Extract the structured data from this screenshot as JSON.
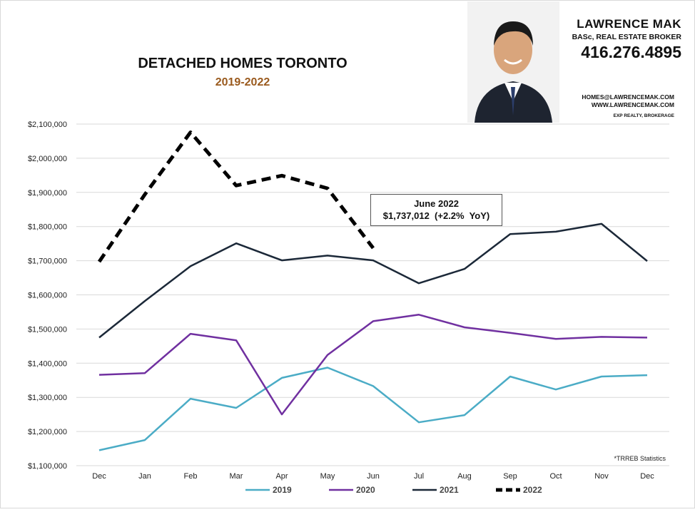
{
  "header": {
    "title": "DETACHED HOMES TORONTO",
    "subtitle": "2019-2022"
  },
  "broker": {
    "name": "LAWRENCE MAK",
    "credentials": "BASc, REAL ESTATE BROKER",
    "phone": "416.276.4895",
    "email": "HOMES@LAWRENCEMAK.COM",
    "website": "WWW.LAWRENCEMAK.COM",
    "brokerage": "EXP REALTY, BROKERAGE"
  },
  "annotation": {
    "line1": "June 2022",
    "line2": "$1,737,012  (+2.2%  YoY)"
  },
  "source_note": "*TRREB Statistics",
  "chart_data": {
    "type": "line",
    "categories": [
      "Dec",
      "Jan",
      "Feb",
      "Mar",
      "Apr",
      "May",
      "Jun",
      "Jul",
      "Aug",
      "Sep",
      "Oct",
      "Nov",
      "Dec"
    ],
    "ylim": [
      1100000,
      2100000
    ],
    "yticks": [
      "$1,100,000",
      "$1,200,000",
      "$1,300,000",
      "$1,400,000",
      "$1,500,000",
      "$1,600,000",
      "$1,700,000",
      "$1,800,000",
      "$1,900,000",
      "$2,000,000",
      "$2,100,000"
    ],
    "grid": true,
    "legend": "bottom",
    "series": [
      {
        "name": "2019",
        "color": "#4bacc6",
        "dash": false,
        "values": [
          1145000,
          1175000,
          1296000,
          1269000,
          1357000,
          1387000,
          1333000,
          1227000,
          1248000,
          1361000,
          1323000,
          1361000,
          1365000
        ]
      },
      {
        "name": "2020",
        "color": "#7030a0",
        "dash": false,
        "values": [
          1366000,
          1371000,
          1486000,
          1467000,
          1250000,
          1424000,
          1523000,
          1542000,
          1505000,
          1489000,
          1471000,
          1477000,
          1475000
        ]
      },
      {
        "name": "2021",
        "color": "#1b2838",
        "dash": false,
        "values": [
          1475000,
          1582000,
          1684000,
          1751000,
          1701000,
          1715000,
          1701000,
          1634000,
          1676000,
          1778000,
          1785000,
          1808000,
          1699000
        ]
      },
      {
        "name": "2022",
        "color": "#000000",
        "dash": true,
        "values": [
          1697000,
          1894000,
          2076000,
          1920000,
          1949000,
          1912000,
          1737012,
          null,
          null,
          null,
          null,
          null,
          null
        ]
      }
    ]
  }
}
